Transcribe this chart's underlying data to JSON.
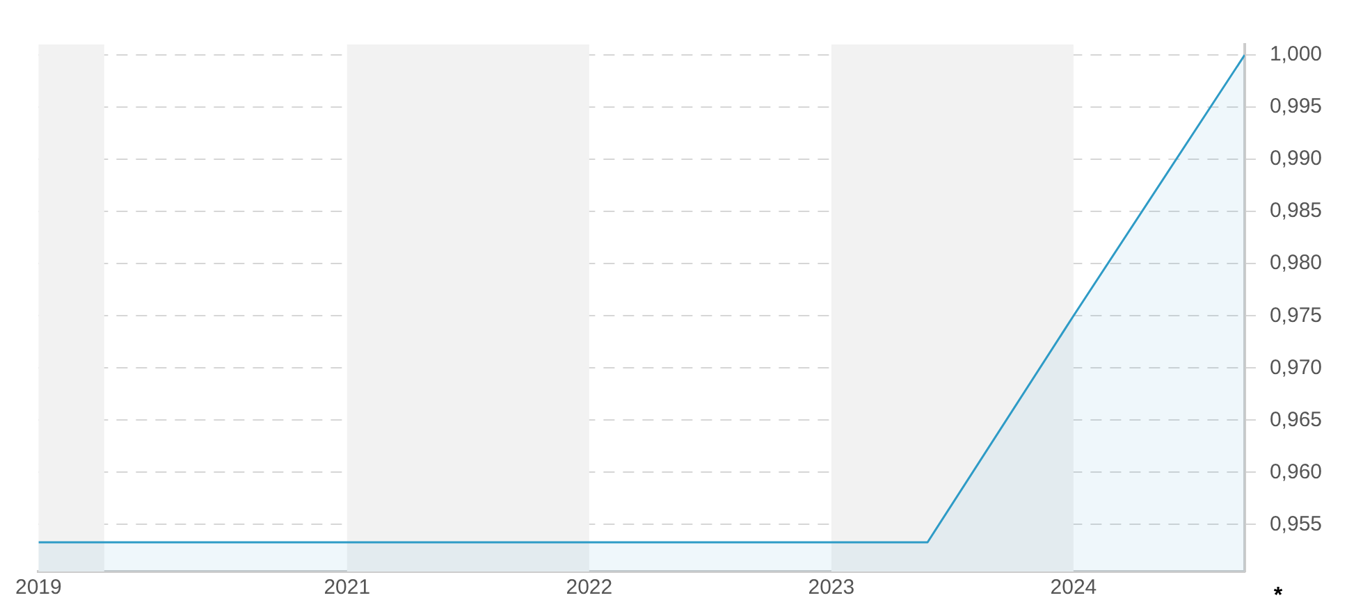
{
  "chart_data": {
    "type": "area",
    "x": [
      "2019-09-24",
      "2023-05-26",
      "2024-01-01",
      "2024-09-15"
    ],
    "series": [
      {
        "color": "#2e9bc6",
        "values": [
          0.9533,
          0.9533,
          0.975,
          1.0
        ]
      }
    ],
    "xlim": [
      "2019-09-24",
      "2024-09-15"
    ],
    "xticks": [
      {
        "value": "2019-09-24",
        "label": "2019"
      },
      {
        "value": "2021-01-01",
        "label": "2021"
      },
      {
        "value": "2022-01-01",
        "label": "2022"
      },
      {
        "value": "2023-01-01",
        "label": "2023"
      },
      {
        "value": "2024-01-01",
        "label": "2024"
      }
    ],
    "ylim": [
      0.9505,
      1.001
    ],
    "yticks": [
      {
        "value": 0.955,
        "label": "0,955"
      },
      {
        "value": 0.96,
        "label": "0,960"
      },
      {
        "value": 0.965,
        "label": "0,965"
      },
      {
        "value": 0.97,
        "label": "0,970"
      },
      {
        "value": 0.975,
        "label": "0,975"
      },
      {
        "value": 0.98,
        "label": "0,980"
      },
      {
        "value": 0.985,
        "label": "0,985"
      },
      {
        "value": 0.99,
        "label": "0,990"
      },
      {
        "value": 0.995,
        "label": "0,995"
      },
      {
        "value": 1.0,
        "label": "1,000"
      }
    ],
    "bands": [
      {
        "axis": "x",
        "from": "2019-09-24",
        "to": "2020-01-01",
        "color": "#f2f2f2"
      },
      {
        "axis": "x",
        "from": "2021-01-01",
        "to": "2022-01-01",
        "color": "#f2f2f2"
      },
      {
        "axis": "x",
        "from": "2023-01-01",
        "to": "2024-01-01",
        "color": "#f2f2f2"
      }
    ],
    "grid": "y",
    "legend": false,
    "marker": "none",
    "line_style": "solid",
    "annotations": [
      "*"
    ]
  }
}
